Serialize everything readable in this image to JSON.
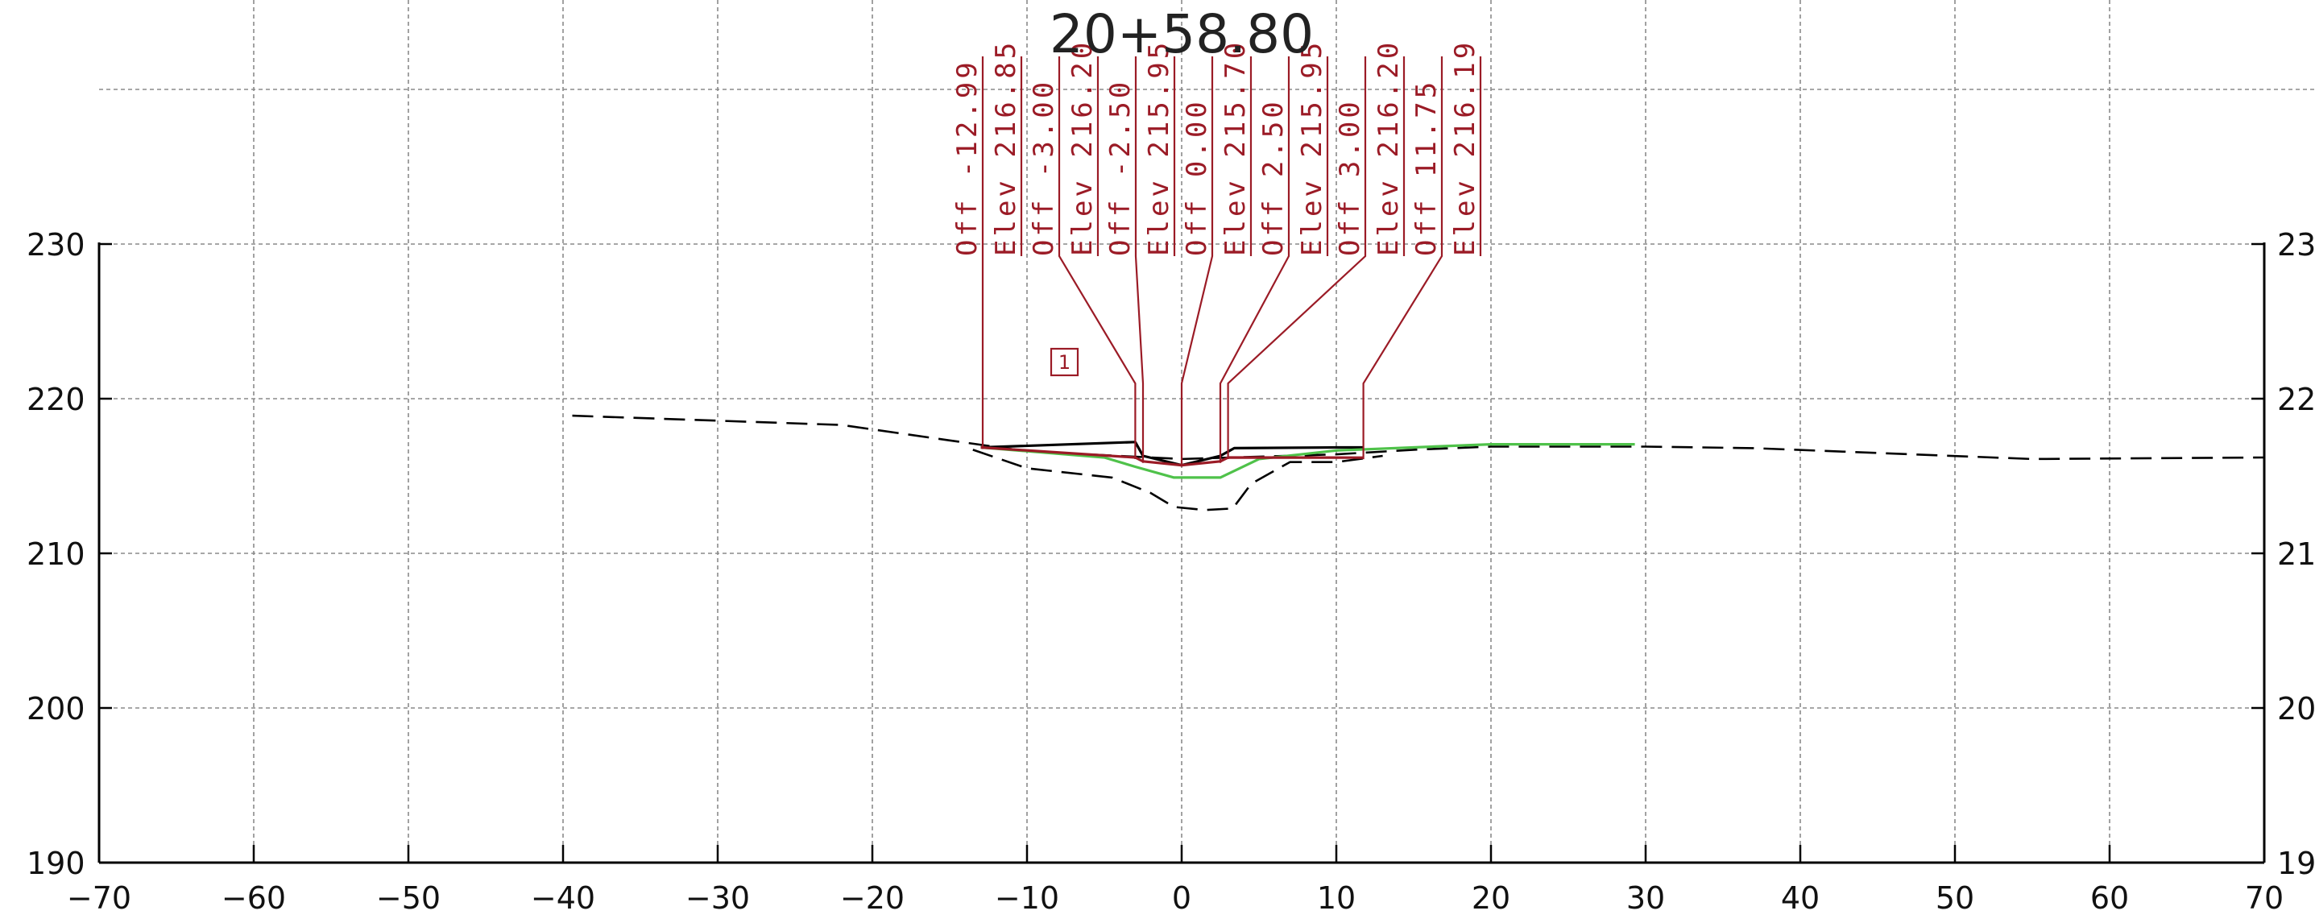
{
  "title": "20+58.80",
  "marker": "1",
  "chart_data": {
    "type": "line",
    "xlim": [
      -70,
      70
    ],
    "ylim": [
      190,
      240
    ],
    "x_ticks": [
      -70,
      -60,
      -50,
      -40,
      -30,
      -20,
      -10,
      0,
      10,
      20,
      30,
      40,
      50,
      60,
      70
    ],
    "x_tick_labels": [
      "−70",
      "−60",
      "−50",
      "−40",
      "−30",
      "−20",
      "−10",
      "0",
      "10",
      "20",
      "30",
      "40",
      "50",
      "60",
      "70"
    ],
    "y_ticks": [
      190,
      200,
      210,
      220,
      230
    ],
    "y_tick_labels": [
      "190",
      "200",
      "210",
      "220",
      "230"
    ],
    "y_tick_labels_right": [
      "19",
      "20",
      "21",
      "22",
      "23"
    ],
    "grid": true,
    "series": [
      {
        "color": "#000000",
        "style": "dashed",
        "points": [
          [
            -39.4,
            218.9
          ],
          [
            -22,
            218.3
          ],
          [
            -15,
            217.3
          ],
          [
            -10,
            216.6
          ],
          [
            0,
            216.1
          ],
          [
            10,
            216.4
          ],
          [
            15,
            216.7
          ],
          [
            20,
            216.9
          ],
          [
            30,
            216.9
          ],
          [
            37,
            216.8
          ],
          [
            55,
            216.1
          ],
          [
            70,
            216.2
          ]
        ]
      },
      {
        "color": "#000000",
        "style": "dashed",
        "points": [
          [
            -13.5,
            216.7
          ],
          [
            -10,
            215.5
          ],
          [
            -4.5,
            214.9
          ],
          [
            -2,
            213.9
          ],
          [
            -0.5,
            213.0
          ],
          [
            1.5,
            212.8
          ],
          [
            3.3,
            212.9
          ],
          [
            4.5,
            214.5
          ],
          [
            7,
            215.9
          ],
          [
            10,
            215.9
          ],
          [
            13,
            216.3
          ]
        ]
      },
      {
        "color": "#000000",
        "style": "solid",
        "points": [
          [
            -12.99,
            216.85
          ],
          [
            -3.0,
            217.2
          ],
          [
            -2.5,
            216.3
          ],
          [
            0.0,
            215.7
          ],
          [
            2.5,
            216.3
          ],
          [
            3.4,
            216.8
          ],
          [
            10.0,
            216.85
          ],
          [
            11.75,
            216.85
          ]
        ]
      },
      {
        "color": "#4fc24a",
        "style": "solid",
        "points": [
          [
            -12.99,
            216.85
          ],
          [
            -5,
            216.2
          ],
          [
            -3,
            215.6
          ],
          [
            -0.5,
            214.9
          ],
          [
            2.5,
            214.9
          ],
          [
            5,
            216.1
          ],
          [
            10,
            216.65
          ],
          [
            20,
            217.05
          ],
          [
            29.3,
            217.05
          ]
        ]
      },
      {
        "color": "#9b1b26",
        "style": "solid",
        "points": [
          [
            -12.99,
            216.85
          ],
          [
            -3.0,
            216.2
          ],
          [
            -2.5,
            215.95
          ],
          [
            0.0,
            215.7
          ],
          [
            2.5,
            215.95
          ],
          [
            3.0,
            216.2
          ],
          [
            11.75,
            216.19
          ]
        ]
      }
    ],
    "annotations": [
      {
        "off_label": "Off",
        "off_value": "-12.99",
        "elev_label": "Elev",
        "elev_value": "216.85",
        "offset": -12.99,
        "elevation": 216.85
      },
      {
        "off_label": "Off",
        "off_value": "-3.00",
        "elev_label": "Elev",
        "elev_value": "216.20",
        "offset": -3.0,
        "elevation": 216.2
      },
      {
        "off_label": "Off",
        "off_value": "-2.50",
        "elev_label": "Elev",
        "elev_value": "215.95",
        "offset": -2.5,
        "elevation": 215.95
      },
      {
        "off_label": "Off",
        "off_value": "0.00",
        "elev_label": "Elev",
        "elev_value": "215.70",
        "offset": 0.0,
        "elevation": 215.7
      },
      {
        "off_label": "Off",
        "off_value": "2.50",
        "elev_label": "Elev",
        "elev_value": "215.95",
        "offset": 2.5,
        "elevation": 215.95
      },
      {
        "off_label": "Off",
        "off_value": "3.00",
        "elev_label": "Elev",
        "elev_value": "216.20",
        "offset": 3.0,
        "elevation": 216.2
      },
      {
        "off_label": "Off",
        "off_value": "11.75",
        "elev_label": "Elev",
        "elev_value": "216.19",
        "offset": 11.75,
        "elevation": 216.19
      }
    ]
  }
}
